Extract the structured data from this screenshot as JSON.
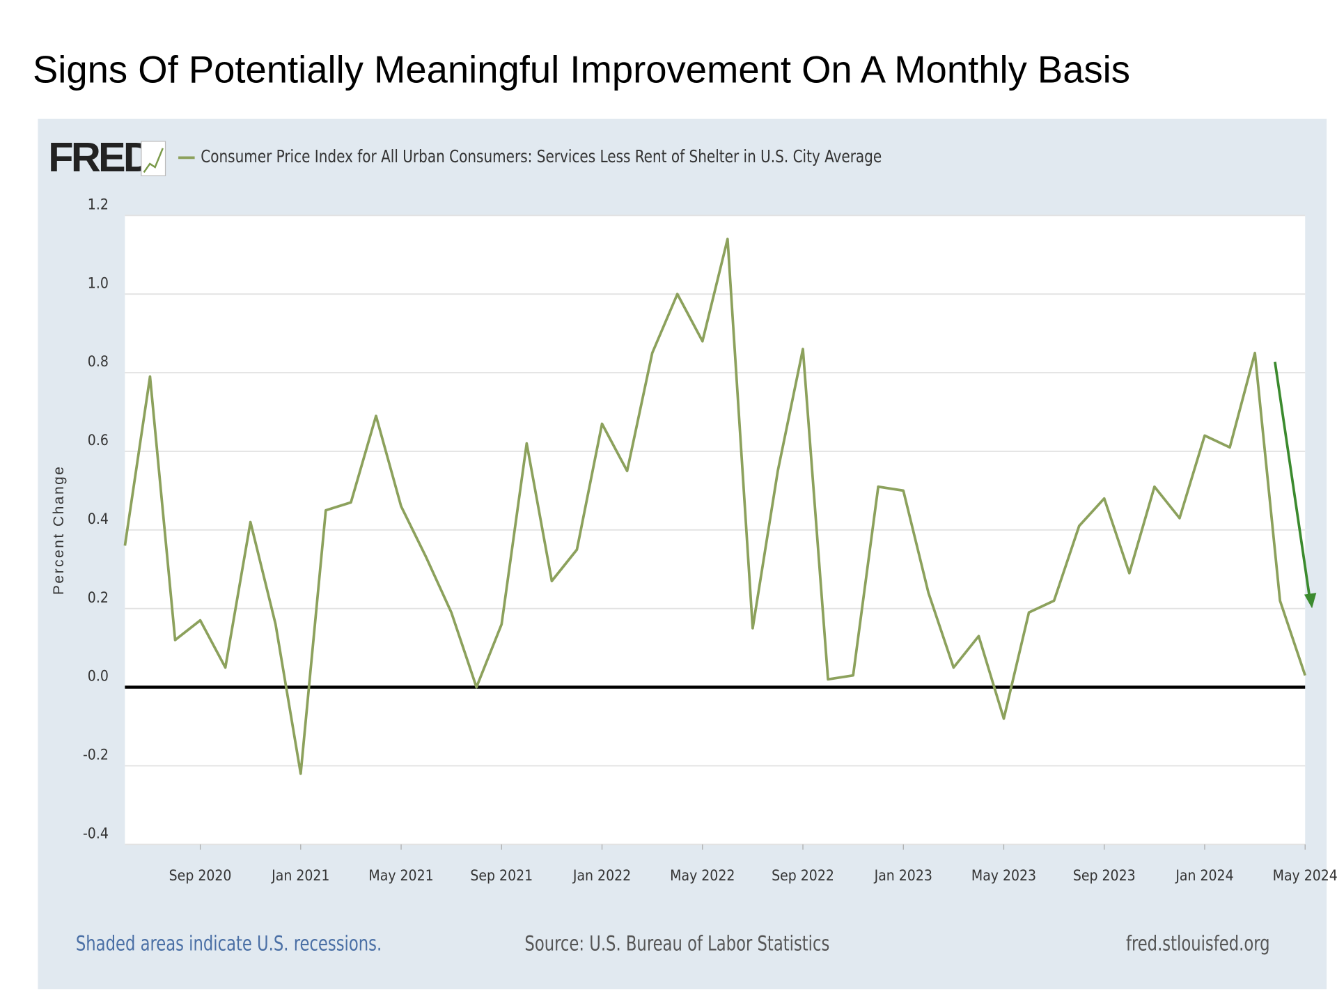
{
  "title": "Signs Of Potentially Meaningful Improvement On A Monthly Basis",
  "chart_data": {
    "type": "line",
    "logo": "FRED",
    "ylabel": "Percent Change",
    "x": [
      "2020-06",
      "2020-07",
      "2020-08",
      "2020-09",
      "2020-10",
      "2020-11",
      "2020-12",
      "2021-01",
      "2021-02",
      "2021-03",
      "2021-04",
      "2021-05",
      "2021-06",
      "2021-07",
      "2021-08",
      "2021-09",
      "2021-10",
      "2021-11",
      "2021-12",
      "2022-01",
      "2022-02",
      "2022-03",
      "2022-04",
      "2022-05",
      "2022-06",
      "2022-07",
      "2022-08",
      "2022-09",
      "2022-10",
      "2022-11",
      "2022-12",
      "2023-01",
      "2023-02",
      "2023-03",
      "2023-04",
      "2023-05",
      "2023-06",
      "2023-07",
      "2023-08",
      "2023-09",
      "2023-10",
      "2023-11",
      "2023-12",
      "2024-01",
      "2024-02",
      "2024-03",
      "2024-04",
      "2024-05"
    ],
    "xlim": [
      "2020-06",
      "2024-05"
    ],
    "xticks": [
      {
        "value": "2020-09",
        "label": "Sep 2020"
      },
      {
        "value": "2021-01",
        "label": "Jan 2021"
      },
      {
        "value": "2021-05",
        "label": "May 2021"
      },
      {
        "value": "2021-09",
        "label": "Sep 2021"
      },
      {
        "value": "2022-01",
        "label": "Jan 2022"
      },
      {
        "value": "2022-05",
        "label": "May 2022"
      },
      {
        "value": "2022-09",
        "label": "Sep 2022"
      },
      {
        "value": "2023-01",
        "label": "Jan 2023"
      },
      {
        "value": "2023-05",
        "label": "May 2023"
      },
      {
        "value": "2023-09",
        "label": "Sep 2023"
      },
      {
        "value": "2024-01",
        "label": "Jan 2024"
      },
      {
        "value": "2024-05",
        "label": "May 2024"
      }
    ],
    "series": [
      {
        "name": "Consumer Price Index for All Urban Consumers: Services Less Rent of Shelter in U.S. City Average",
        "color": "#8ca15c",
        "values": [
          0.36,
          0.79,
          0.12,
          0.17,
          0.05,
          0.42,
          0.16,
          -0.22,
          0.45,
          0.47,
          0.69,
          0.46,
          0.33,
          0.19,
          0.0,
          0.16,
          0.62,
          0.27,
          0.35,
          0.67,
          0.55,
          0.85,
          1.0,
          0.88,
          1.14,
          0.15,
          0.55,
          0.86,
          0.02,
          0.03,
          0.51,
          0.5,
          0.24,
          0.05,
          0.13,
          -0.08,
          0.19,
          0.22,
          0.41,
          0.48,
          0.29,
          0.51,
          0.43,
          0.64,
          0.61,
          0.85,
          0.22,
          0.03
        ]
      }
    ],
    "ylim": [
      -0.4,
      1.2
    ],
    "yticks": [
      -0.4,
      -0.2,
      {
        "value": 0,
        "label": "0.0"
      },
      0.2,
      0.4,
      0.6,
      0.8,
      {
        "value": 1,
        "label": "1.0"
      },
      1.2
    ],
    "grid": true,
    "footer_left": "Shaded areas indicate U.S. recessions.",
    "source": "Source: U.S. Bureau of Labor Statistics",
    "footer_right": "fred.stlouisfed.org"
  }
}
